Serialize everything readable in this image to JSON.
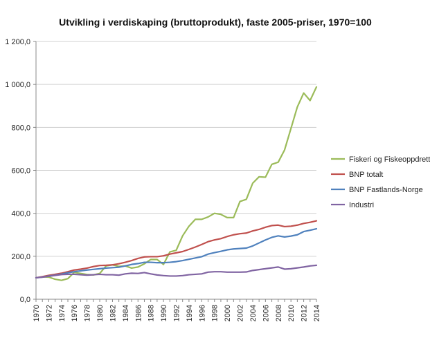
{
  "chart_data": {
    "type": "line",
    "title": "Utvikling i verdiskaping (bruttoprodukt),  faste 2005-priser, 1970=100",
    "xlabel": "",
    "ylabel": "",
    "x": [
      1970,
      1971,
      1972,
      1973,
      1974,
      1975,
      1976,
      1977,
      1978,
      1979,
      1980,
      1981,
      1982,
      1983,
      1984,
      1985,
      1986,
      1987,
      1988,
      1989,
      1990,
      1991,
      1992,
      1993,
      1994,
      1995,
      1996,
      1997,
      1998,
      1999,
      2000,
      2001,
      2002,
      2003,
      2004,
      2005,
      2006,
      2007,
      2008,
      2009,
      2010,
      2011,
      2012,
      2013,
      2014
    ],
    "x_tick_labels": [
      "1970",
      "1972",
      "1974",
      "1976",
      "1978",
      "1980",
      "1982",
      "1984",
      "1986",
      "1988",
      "1990",
      "1992",
      "1994",
      "1996",
      "1998",
      "2000",
      "2002",
      "2004",
      "2006",
      "2008",
      "2010",
      "2012",
      "2014"
    ],
    "y_tick_labels": [
      "0,0",
      "200,0",
      "400,0",
      "600,0",
      "800,0",
      "1 000,0",
      "1 200,0"
    ],
    "ylim": [
      0,
      1200
    ],
    "grid": "horizontal",
    "legend_position": "right",
    "series": [
      {
        "name": "Fiskeri og Fiskeoppdrett",
        "color": "#9BBB59",
        "values": [
          100,
          104,
          103,
          93,
          88,
          96,
          125,
          120,
          115,
          113,
          120,
          155,
          160,
          153,
          155,
          145,
          150,
          165,
          185,
          185,
          162,
          220,
          228,
          295,
          340,
          372,
          372,
          383,
          400,
          395,
          380,
          380,
          455,
          465,
          540,
          570,
          568,
          628,
          638,
          695,
          795,
          895,
          960,
          925,
          988
        ]
      },
      {
        "name": "BNP totalt",
        "color": "#C0504D",
        "values": [
          100,
          105,
          111,
          116,
          121,
          128,
          136,
          140,
          145,
          152,
          157,
          158,
          160,
          165,
          172,
          180,
          190,
          197,
          198,
          198,
          202,
          210,
          216,
          222,
          232,
          243,
          255,
          268,
          276,
          282,
          292,
          300,
          305,
          308,
          318,
          325,
          335,
          343,
          345,
          338,
          340,
          345,
          353,
          358,
          365
        ]
      },
      {
        "name": "BNP Fastlands-Norge",
        "color": "#4F81BD",
        "values": [
          100,
          103,
          108,
          112,
          117,
          123,
          128,
          132,
          136,
          139,
          142,
          145,
          147,
          149,
          155,
          162,
          166,
          172,
          172,
          170,
          170,
          172,
          175,
          180,
          186,
          192,
          198,
          210,
          217,
          223,
          230,
          234,
          236,
          238,
          248,
          262,
          276,
          288,
          295,
          290,
          294,
          300,
          315,
          321,
          328
        ]
      },
      {
        "name": "Industri",
        "color": "#8064A2",
        "values": [
          100,
          103,
          107,
          111,
          115,
          116,
          116,
          114,
          112,
          114,
          116,
          114,
          114,
          112,
          118,
          121,
          120,
          124,
          118,
          113,
          110,
          108,
          108,
          110,
          114,
          116,
          118,
          126,
          128,
          128,
          126,
          126,
          126,
          127,
          134,
          138,
          142,
          146,
          150,
          140,
          142,
          146,
          150,
          155,
          158
        ]
      }
    ]
  }
}
